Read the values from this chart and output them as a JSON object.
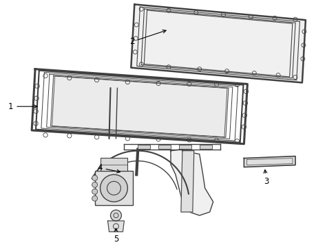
{
  "background_color": "#ffffff",
  "line_color": "#404040",
  "label_color": "#000000",
  "fig_width": 4.89,
  "fig_height": 3.6,
  "dpi": 100,
  "label_fontsize": 8.5
}
